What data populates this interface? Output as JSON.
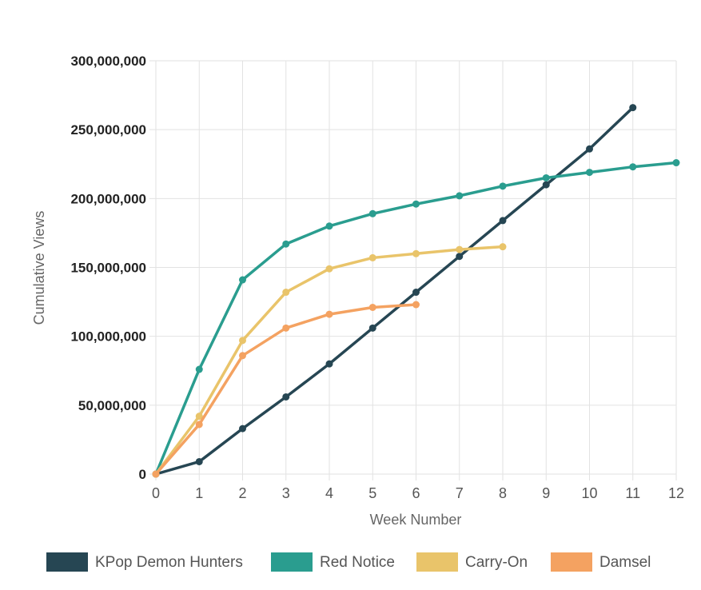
{
  "chart_data": {
    "type": "line",
    "title": "",
    "xlabel": "Week Number",
    "ylabel": "Cumulative Views",
    "xlim": [
      0,
      12
    ],
    "ylim": [
      0,
      300000000
    ],
    "x_ticks": [
      "0",
      "1",
      "2",
      "3",
      "4",
      "5",
      "6",
      "7",
      "8",
      "9",
      "10",
      "11",
      "12"
    ],
    "y_ticks": [
      "0",
      "50,000,000",
      "100,000,000",
      "150,000,000",
      "200,000,000",
      "250,000,000",
      "300,000,000"
    ],
    "grid": true,
    "legend_position": "bottom",
    "series": [
      {
        "name": "KPop Demon Hunters",
        "color": "#264653",
        "x": [
          0,
          1,
          2,
          3,
          4,
          5,
          6,
          7,
          8,
          9,
          10,
          11
        ],
        "values": [
          0,
          9000000,
          33000000,
          56000000,
          80000000,
          106000000,
          132000000,
          158000000,
          184000000,
          210000000,
          236000000,
          266000000
        ]
      },
      {
        "name": "Red Notice",
        "color": "#2A9D8F",
        "x": [
          0,
          1,
          2,
          3,
          4,
          5,
          6,
          7,
          8,
          9,
          10,
          11,
          12
        ],
        "values": [
          0,
          76000000,
          141000000,
          167000000,
          180000000,
          189000000,
          196000000,
          202000000,
          209000000,
          215000000,
          219000000,
          223000000,
          226000000
        ]
      },
      {
        "name": "Carry-On",
        "color": "#E9C46A",
        "x": [
          0,
          1,
          2,
          3,
          4,
          5,
          6,
          7,
          8
        ],
        "values": [
          0,
          42000000,
          97000000,
          132000000,
          149000000,
          157000000,
          160000000,
          163000000,
          165000000
        ]
      },
      {
        "name": "Damsel",
        "color": "#F4A261",
        "x": [
          0,
          1,
          2,
          3,
          4,
          5,
          6
        ],
        "values": [
          0,
          36000000,
          86000000,
          106000000,
          116000000,
          121000000,
          123000000
        ]
      }
    ]
  }
}
